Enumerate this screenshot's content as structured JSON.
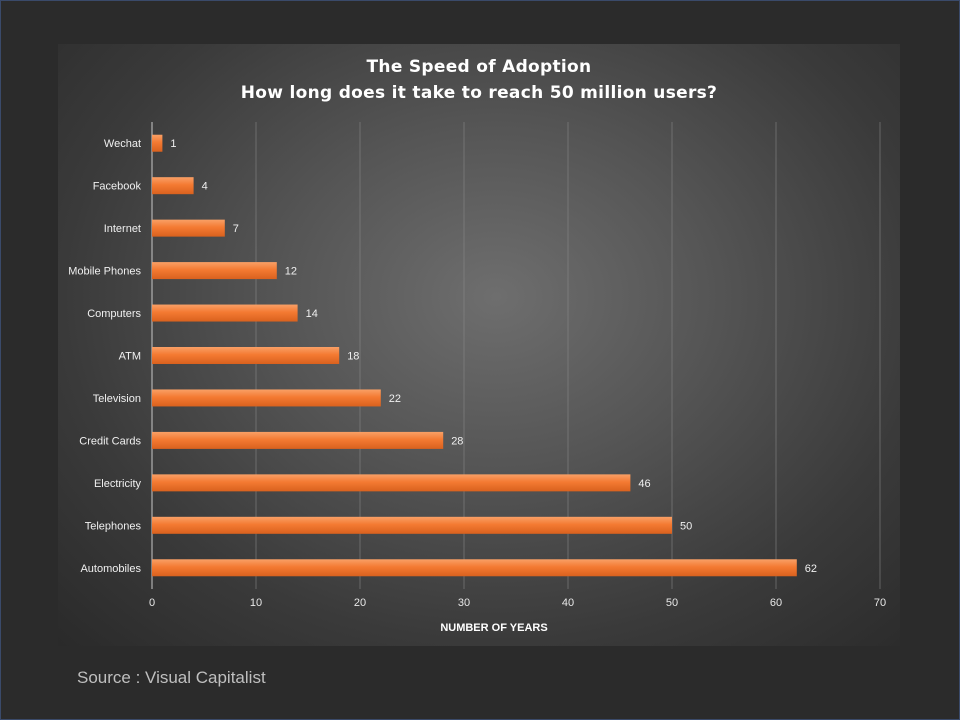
{
  "chart_data": {
    "type": "bar",
    "orientation": "horizontal",
    "title": "The Speed of Adoption",
    "subtitle": "How long does it take to reach 50 million users?",
    "categories": [
      "Wechat",
      "Facebook",
      "Internet",
      "Mobile Phones",
      "Computers",
      "ATM",
      "Television",
      "Credit Cards",
      "Electricity",
      "Telephones",
      "Automobiles"
    ],
    "values": [
      1,
      4,
      7,
      12,
      14,
      18,
      22,
      28,
      46,
      50,
      62
    ],
    "xlabel": "NUMBER OF YEARS",
    "ylabel": "",
    "xlim": [
      0,
      70
    ],
    "xticks": [
      "0",
      "10",
      "20",
      "30",
      "40",
      "50",
      "60",
      "70"
    ],
    "grid": true,
    "data_labels": true,
    "bar_color": "#f47a32"
  },
  "source": "Source : Visual Capitalist"
}
